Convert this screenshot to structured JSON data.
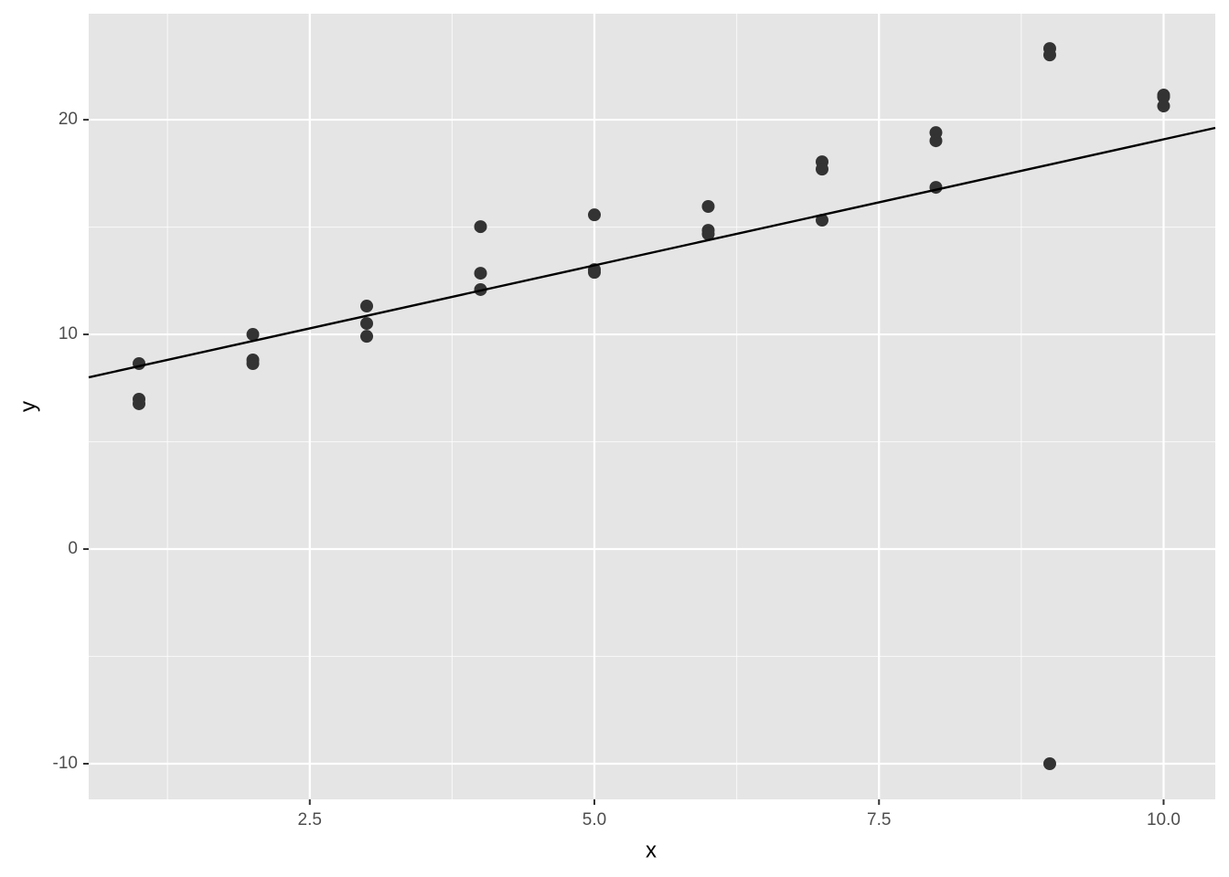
{
  "chart_data": {
    "type": "scatter",
    "x_label": "x",
    "y_label": "y",
    "x": [
      1,
      1,
      1,
      2,
      2,
      2,
      3,
      3,
      3,
      4,
      4,
      4,
      5,
      5,
      5,
      6,
      6,
      6,
      7,
      7,
      7,
      8,
      8,
      8,
      9,
      9,
      9,
      10,
      10,
      10
    ],
    "y": [
      8.64,
      6.98,
      6.77,
      10.0,
      8.81,
      8.64,
      11.32,
      10.51,
      9.91,
      15.02,
      12.85,
      12.09,
      15.57,
      13.02,
      12.89,
      15.96,
      14.85,
      14.68,
      18.04,
      17.7,
      15.32,
      19.4,
      19.02,
      16.85,
      23.32,
      23.02,
      -10,
      21.15,
      21.06,
      20.64
    ],
    "color": "#333333",
    "lines": [
      {
        "x": [
          0.558,
          10.454
        ],
        "y": [
          8.0,
          19.62
        ],
        "color": "#000000"
      }
    ],
    "xlim": [
      0.558,
      10.454
    ],
    "ylim": [
      -11.66,
      24.94
    ],
    "xticks": [
      2.5,
      {
        "value": 5,
        "label": "5.0"
      },
      {
        "value": 7.5,
        "label": "7.5"
      },
      {
        "value": 10,
        "label": "10.0"
      }
    ],
    "yticks": [
      -10,
      0,
      10,
      20
    ],
    "xminor": [
      1.25,
      3.75,
      6.25,
      8.75
    ],
    "yminor": [
      -5,
      5,
      15
    ],
    "grid": true,
    "panel_color": "#e5e5e5"
  }
}
